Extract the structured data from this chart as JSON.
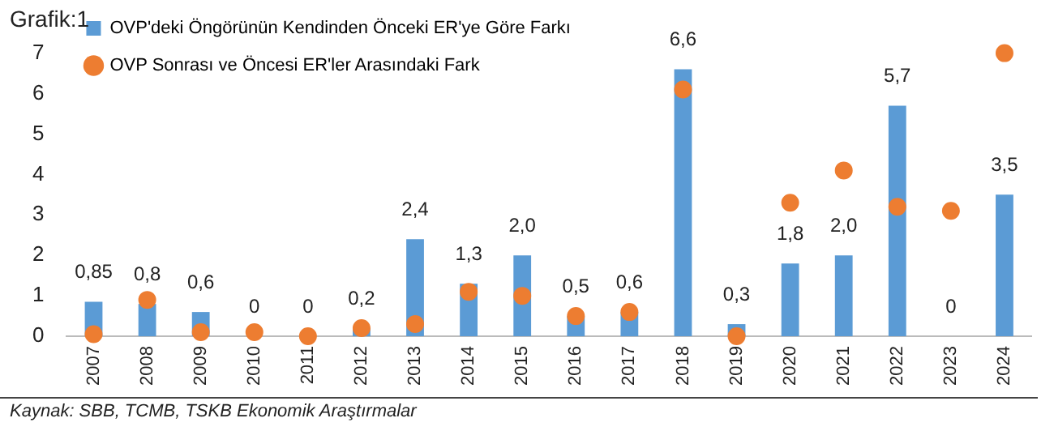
{
  "chart_data": {
    "type": "bar",
    "title": "Grafik:1",
    "categories": [
      "2007",
      "2008",
      "2009",
      "2010",
      "2011",
      "2012",
      "2013",
      "2014",
      "2015",
      "2016",
      "2017",
      "2018",
      "2019",
      "2020",
      "2021",
      "2022",
      "2023",
      "2024"
    ],
    "series": [
      {
        "name": "OVP'deki Öngörünün Kendinden Önceki ER'ye Göre Farkı",
        "color": "#5b9bd5",
        "values": [
          0.85,
          0.8,
          0.6,
          0,
          0,
          0.2,
          2.4,
          1.3,
          2.0,
          0.5,
          0.6,
          6.6,
          0.3,
          1.8,
          2.0,
          5.7,
          0,
          3.5
        ],
        "value_labels": [
          "0,85",
          "0,8",
          "0,6",
          "0",
          "0",
          "0,2",
          "2,4",
          "1,3",
          "2,0",
          "0,5",
          "0,6",
          "6,6",
          "0,3",
          "1,8",
          "2,0",
          "5,7",
          "0",
          "3,5"
        ]
      },
      {
        "name": "OVP Sonrası ve Öncesi ER'ler Arasındaki Fark",
        "type": "scatter",
        "color": "#ed7d31",
        "values": [
          0.05,
          0.9,
          0.1,
          0.1,
          0,
          0.2,
          0.3,
          1.1,
          1.0,
          0.5,
          0.6,
          6.1,
          0,
          3.3,
          4.1,
          3.2,
          3.1,
          7.0
        ]
      }
    ],
    "ylim": [
      0,
      7
    ],
    "yticks": [
      0,
      1,
      2,
      3,
      4,
      5,
      6,
      7
    ],
    "grid": false,
    "legend": "top left",
    "marker": "circle",
    "annotations": [
      "Kaynak: SBB, TCMB, TSKB Ekonomik Araştırmalar"
    ]
  }
}
